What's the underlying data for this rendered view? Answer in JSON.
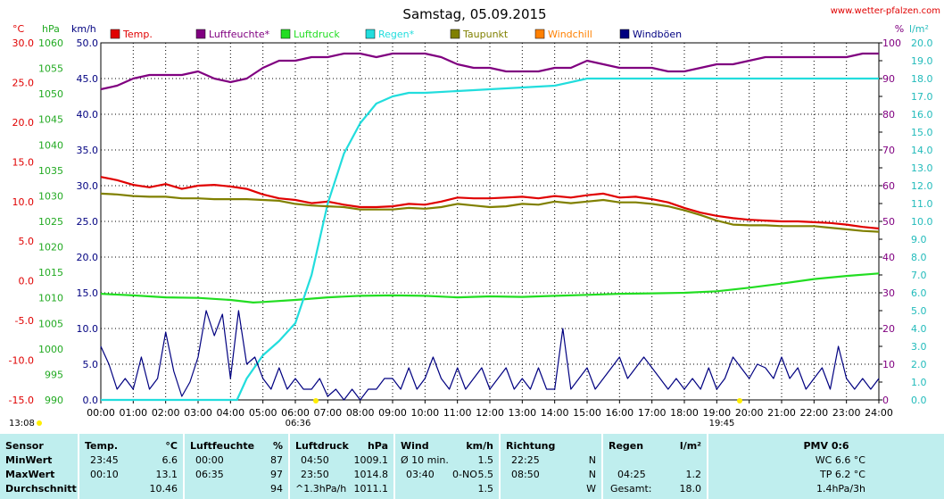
{
  "header": {
    "title": "Samstag, 05.09.2015",
    "source": "www.wetter-pfalzen.com",
    "units": {
      "temp": "°C",
      "pressure": "hPa",
      "wind": "km/h",
      "humidity": "%",
      "rain": "l/m²"
    }
  },
  "legend": [
    {
      "label": "Temp.",
      "color": "#e00000"
    },
    {
      "label": "Luftfeuchte*",
      "color": "#800080"
    },
    {
      "label": "Luftdruck",
      "color": "#22dd22"
    },
    {
      "label": "Regen*",
      "color": "#22dddd"
    },
    {
      "label": "Taupunkt",
      "color": "#808000"
    },
    {
      "label": "Windchill",
      "color": "#ff8000"
    },
    {
      "label": "Windböen",
      "color": "#000080"
    }
  ],
  "sun": {
    "rise": "06:36",
    "set": "19:45",
    "day_start": "13:08"
  },
  "chart_data": {
    "type": "line",
    "title": "Samstag, 05.09.2015",
    "x_ticks": [
      "00:00",
      "01:00",
      "02:00",
      "03:00",
      "04:00",
      "05:00",
      "06:00",
      "07:00",
      "08:00",
      "09:00",
      "10:00",
      "11:00",
      "12:00",
      "13:00",
      "14:00",
      "15:00",
      "16:00",
      "17:00",
      "18:00",
      "19:00",
      "20:00",
      "21:00",
      "22:00",
      "23:00",
      "24:00"
    ],
    "xlim": [
      0,
      24
    ],
    "axes": {
      "temp": {
        "label": "°C",
        "ylim": [
          -15,
          30
        ],
        "ticks": [
          "30.0",
          "25.0",
          "20.0",
          "15.0",
          "10.0",
          "5.0",
          "0.0",
          "-5.0",
          "-10.0",
          "-15.0"
        ]
      },
      "pressure": {
        "label": "hPa",
        "ylim": [
          990,
          1060
        ],
        "ticks": [
          "1060",
          "1055",
          "1050",
          "1045",
          "1040",
          "1035",
          "1030",
          "1025",
          "1020",
          "1015",
          "1010",
          "1005",
          "1000",
          "995",
          "990"
        ]
      },
      "wind": {
        "label": "km/h",
        "ylim": [
          0,
          50
        ],
        "ticks": [
          "50.0",
          "45.0",
          "40.0",
          "35.0",
          "30.0",
          "25.0",
          "20.0",
          "15.0",
          "10.0",
          "5.0",
          "0.0"
        ]
      },
      "humidity": {
        "label": "%",
        "ylim": [
          0,
          100
        ],
        "ticks": [
          "100",
          "90",
          "80",
          "70",
          "60",
          "50",
          "40",
          "30",
          "20",
          "10",
          "0"
        ]
      },
      "rain": {
        "label": "l/m²",
        "ylim": [
          0,
          20
        ],
        "ticks": [
          "20.0",
          "19.0",
          "18.0",
          "17.0",
          "16.0",
          "15.0",
          "14.0",
          "13.0",
          "12.0",
          "11.0",
          "10.0",
          "9.0",
          "8.0",
          "7.0",
          "6.0",
          "5.0",
          "4.0",
          "3.0",
          "2.0",
          "1.0",
          "0.0"
        ]
      }
    },
    "series": [
      {
        "name": "Temp.",
        "axis": "temp",
        "color": "#e00000",
        "x": [
          0,
          0.5,
          1,
          1.5,
          2,
          2.5,
          3,
          3.5,
          4,
          4.5,
          5,
          5.5,
          6,
          6.5,
          7,
          7.5,
          8,
          8.5,
          9,
          9.5,
          10,
          10.5,
          11,
          11.5,
          12,
          12.5,
          13,
          13.5,
          14,
          14.5,
          15,
          15.5,
          16,
          16.5,
          17,
          17.5,
          18,
          18.5,
          19,
          19.5,
          20,
          20.5,
          21,
          21.5,
          22,
          22.5,
          23,
          23.5,
          24
        ],
        "y": [
          13.1,
          12.7,
          12.1,
          11.8,
          12.2,
          11.6,
          12.0,
          12.1,
          11.9,
          11.6,
          10.9,
          10.4,
          10.2,
          9.8,
          10.0,
          9.6,
          9.3,
          9.3,
          9.4,
          9.7,
          9.6,
          10.0,
          10.5,
          10.4,
          10.4,
          10.5,
          10.6,
          10.4,
          10.7,
          10.5,
          10.8,
          11.0,
          10.5,
          10.6,
          10.3,
          9.9,
          9.2,
          8.6,
          8.2,
          7.9,
          7.7,
          7.6,
          7.5,
          7.5,
          7.4,
          7.3,
          7.1,
          6.8,
          6.6
        ]
      },
      {
        "name": "Luftfeuchte*",
        "axis": "humidity",
        "color": "#800080",
        "x": [
          0,
          0.5,
          1,
          1.5,
          2,
          2.5,
          3,
          3.5,
          4,
          4.5,
          5,
          5.5,
          6,
          6.5,
          7,
          7.5,
          8,
          8.5,
          9,
          9.5,
          10,
          10.5,
          11,
          11.5,
          12,
          12.5,
          13,
          13.5,
          14,
          14.5,
          15,
          15.5,
          16,
          16.5,
          17,
          17.5,
          18,
          18.5,
          19,
          19.5,
          20,
          20.5,
          21,
          21.5,
          22,
          22.5,
          23,
          23.5,
          24
        ],
        "y": [
          87,
          88,
          90,
          91,
          91,
          91,
          92,
          90,
          89,
          90,
          93,
          95,
          95,
          96,
          96,
          97,
          97,
          96,
          97,
          97,
          97,
          96,
          94,
          93,
          93,
          92,
          92,
          92,
          93,
          93,
          95,
          94,
          93,
          93,
          93,
          92,
          92,
          93,
          94,
          94,
          95,
          96,
          96,
          96,
          96,
          96,
          96,
          97,
          97
        ]
      },
      {
        "name": "Luftdruck",
        "axis": "pressure",
        "color": "#22dd22",
        "x": [
          0,
          1,
          2,
          3,
          4,
          4.7,
          5,
          6,
          7,
          8,
          9,
          10,
          11,
          12,
          13,
          14,
          15,
          16,
          17,
          18,
          19,
          20,
          21,
          22,
          23,
          24
        ],
        "y": [
          1010.8,
          1010.5,
          1010.1,
          1010.0,
          1009.6,
          1009.1,
          1009.2,
          1009.6,
          1010.1,
          1010.4,
          1010.5,
          1010.4,
          1010.1,
          1010.3,
          1010.2,
          1010.4,
          1010.6,
          1010.8,
          1010.9,
          1011.0,
          1011.3,
          1012.0,
          1012.8,
          1013.7,
          1014.3,
          1014.8
        ]
      },
      {
        "name": "Regen*",
        "axis": "rain",
        "color": "#22dddd",
        "x": [
          0,
          4.2,
          4.5,
          5,
          5.5,
          6,
          6.5,
          7,
          7.5,
          8,
          8.5,
          9,
          9.5,
          10,
          11,
          12,
          13,
          14,
          15,
          16,
          18,
          20,
          22,
          24
        ],
        "y": [
          0,
          0,
          1.2,
          2.5,
          3.3,
          4.3,
          7.0,
          11.0,
          13.8,
          15.5,
          16.6,
          17.0,
          17.2,
          17.2,
          17.3,
          17.4,
          17.5,
          17.6,
          18.0,
          18.0,
          18.0,
          18.0,
          18.0,
          18.0
        ]
      },
      {
        "name": "Taupunkt",
        "axis": "temp",
        "color": "#808000",
        "x": [
          0,
          0.5,
          1,
          1.5,
          2,
          2.5,
          3,
          3.5,
          4,
          4.5,
          5,
          5.5,
          6,
          6.5,
          7,
          7.5,
          8,
          8.5,
          9,
          9.5,
          10,
          10.5,
          11,
          11.5,
          12,
          12.5,
          13,
          13.5,
          14,
          14.5,
          15,
          15.5,
          16,
          16.5,
          17,
          17.5,
          18,
          18.5,
          19,
          19.5,
          20,
          20.5,
          21,
          21.5,
          22,
          22.5,
          23,
          23.5,
          24
        ],
        "y": [
          11.0,
          10.9,
          10.7,
          10.6,
          10.6,
          10.4,
          10.4,
          10.3,
          10.3,
          10.3,
          10.2,
          10.1,
          9.7,
          9.5,
          9.4,
          9.3,
          9.0,
          9.0,
          9.0,
          9.2,
          9.1,
          9.3,
          9.7,
          9.5,
          9.3,
          9.4,
          9.7,
          9.6,
          10.0,
          9.8,
          10.0,
          10.2,
          9.9,
          9.9,
          9.7,
          9.4,
          8.9,
          8.3,
          7.6,
          7.1,
          7.0,
          7.0,
          6.9,
          6.9,
          6.9,
          6.7,
          6.5,
          6.3,
          6.2
        ]
      },
      {
        "name": "Windböen",
        "axis": "wind",
        "color": "#000080",
        "x": [
          0,
          0.25,
          0.5,
          0.75,
          1,
          1.25,
          1.5,
          1.75,
          2,
          2.25,
          2.5,
          2.75,
          3,
          3.25,
          3.5,
          3.75,
          4,
          4.25,
          4.5,
          4.75,
          5,
          5.25,
          5.5,
          5.75,
          6,
          6.25,
          6.5,
          6.75,
          7,
          7.25,
          7.5,
          7.75,
          8,
          8.25,
          8.5,
          8.75,
          9,
          9.25,
          9.5,
          9.75,
          10,
          10.25,
          10.5,
          10.75,
          11,
          11.25,
          11.5,
          11.75,
          12,
          12.25,
          12.5,
          12.75,
          13,
          13.25,
          13.5,
          13.75,
          14,
          14.25,
          14.5,
          14.75,
          15,
          15.25,
          15.5,
          15.75,
          16,
          16.25,
          16.5,
          16.75,
          17,
          17.25,
          17.5,
          17.75,
          18,
          18.25,
          18.5,
          18.75,
          19,
          19.25,
          19.5,
          19.75,
          20,
          20.25,
          20.5,
          20.75,
          21,
          21.25,
          21.5,
          21.75,
          22,
          22.25,
          22.5,
          22.75,
          23,
          23.25,
          23.5,
          23.75,
          24
        ],
        "y": [
          7.5,
          5.0,
          1.5,
          3.0,
          1.5,
          6.0,
          1.5,
          3.0,
          9.5,
          4.0,
          0.5,
          2.5,
          6.0,
          12.5,
          9.0,
          12.0,
          3.0,
          12.5,
          5.0,
          6.0,
          3.0,
          1.5,
          4.5,
          1.5,
          3.0,
          1.5,
          1.5,
          3.0,
          0.5,
          1.5,
          0.0,
          1.5,
          0.0,
          1.5,
          1.5,
          3.0,
          3.0,
          1.5,
          4.5,
          1.5,
          3.0,
          6.0,
          3.0,
          1.5,
          4.5,
          1.5,
          3.0,
          4.5,
          1.5,
          3.0,
          4.5,
          1.5,
          3.0,
          1.5,
          4.5,
          1.5,
          1.5,
          10.0,
          1.5,
          3.0,
          4.5,
          1.5,
          3.0,
          4.5,
          6.0,
          3.0,
          4.5,
          6.0,
          4.5,
          3.0,
          1.5,
          3.0,
          1.5,
          3.0,
          1.5,
          4.5,
          1.5,
          3.0,
          6.0,
          4.5,
          3.0,
          5.0,
          4.5,
          3.0,
          6.0,
          3.0,
          4.5,
          1.5,
          3.0,
          4.5,
          1.5,
          7.5,
          3.0,
          1.5,
          3.0,
          1.5,
          3.0
        ]
      }
    ]
  },
  "stats": {
    "sensor": {
      "title": "Sensor",
      "rows": [
        "MinWert",
        "MaxWert",
        "Durchschnitt"
      ]
    },
    "temp": {
      "title": "Temp.",
      "unit": "°C",
      "min_time": "23:45",
      "min_val": "6.6",
      "max_time": "00:10",
      "max_val": "13.1",
      "avg_val": "10.46"
    },
    "hum": {
      "title": "Luftfeuchte",
      "unit": "%",
      "min_time": "00:00",
      "min_val": "87",
      "max_time": "06:35",
      "max_val": "97",
      "avg_val": "94"
    },
    "press": {
      "title": "Luftdruck",
      "unit": "hPa",
      "min_time": "04:50",
      "min_val": "1009.1",
      "max_time": "23:50",
      "max_val": "1014.8",
      "avg_note": "^1.3hPa/h",
      "avg_val": "1011.1"
    },
    "wind": {
      "title": "Wind",
      "unit": "km/h",
      "r1_label": "Ø 10 min.",
      "r1_val": "1.5",
      "r2_time": "03:40",
      "r2_dir": "0-NO",
      "r2_val": "5.5",
      "r3_val": "1.5"
    },
    "dir": {
      "title": "Richtung",
      "r1_time": "22:25",
      "r1_dir": "N",
      "r2_time": "08:50",
      "r2_dir": "N",
      "r3_dir": "W"
    },
    "rain": {
      "title": "Regen",
      "unit": "l/m²",
      "r2_time": "04:25",
      "r2_val": "1.2",
      "r3_label": "Gesamt:",
      "r3_val": "18.0"
    },
    "pmv": {
      "title": "PMV 0:6",
      "wc": "WC 6.6 °C",
      "tp": "TP 6.2 °C",
      "trend": "1.4hPa/3h"
    }
  }
}
